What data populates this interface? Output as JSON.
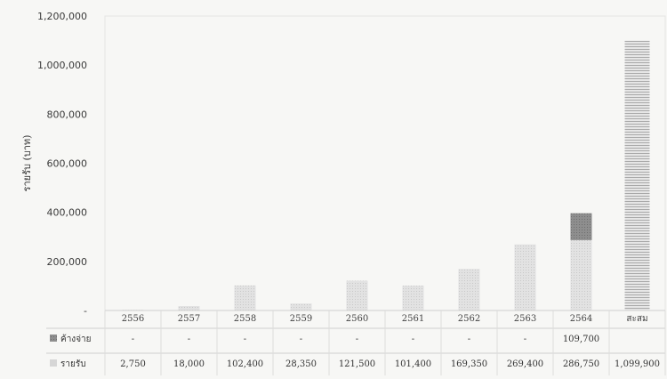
{
  "chart_data": {
    "type": "bar",
    "stacked": true,
    "title": "",
    "xlabel": "",
    "ylabel": "รายรับ (บาท)",
    "ylim": [
      0,
      1200000
    ],
    "yticks": [
      "-",
      "200,000",
      "400,000",
      "600,000",
      "800,000",
      "1,000,000",
      "1,200,000"
    ],
    "categories": [
      "2556",
      "2557",
      "2558",
      "2559",
      "2560",
      "2561",
      "2562",
      "2563",
      "2564",
      "สะสม"
    ],
    "series": [
      {
        "name": "รายรับ",
        "values": [
          2750,
          18000,
          102400,
          28350,
          121500,
          101400,
          169350,
          269400,
          286750,
          1099900
        ],
        "labels": [
          "2,750",
          "18,000",
          "102,400",
          "28,350",
          "121,500",
          "101,400",
          "169,350",
          "269,400",
          "286,750",
          "1,099,900"
        ],
        "color": "#dcdcdc"
      },
      {
        "name": "ค้างจ่าย",
        "values": [
          0,
          0,
          0,
          0,
          0,
          0,
          0,
          0,
          109700,
          0
        ],
        "labels": [
          "-",
          "-",
          "-",
          "-",
          "-",
          "-",
          "-",
          "-",
          "109,700",
          ""
        ],
        "color": "#8c8c8c"
      }
    ],
    "grid": false,
    "legend": "data-table-left"
  }
}
